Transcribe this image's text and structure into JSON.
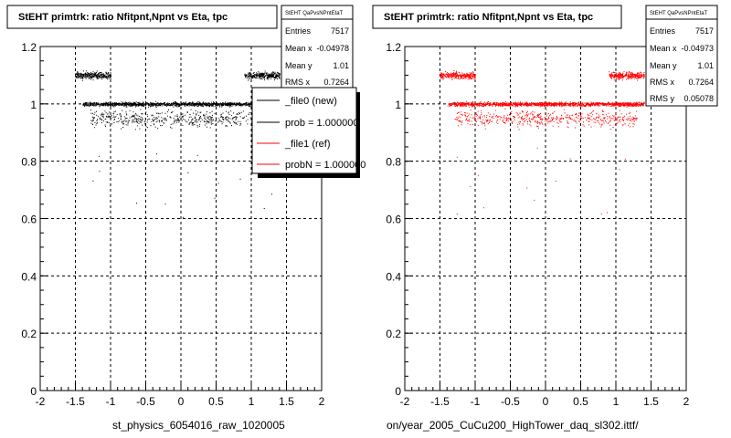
{
  "colors": {
    "new": "#000000",
    "ref": "#ff0000",
    "grid": "#000000"
  },
  "chart_data": [
    {
      "type": "scatter",
      "title": "StEHT primtrk: ratio Nfitpnt,Npnt vs Eta, tpc",
      "xlabel": "st_physics_6054016_raw_1020005",
      "xlim": [
        -2,
        2
      ],
      "ylim": [
        0,
        1.2
      ],
      "xticks": [
        "-2",
        "-1.5",
        "-1",
        "-0.5",
        "0",
        "0.5",
        "1",
        "1.5",
        "2"
      ],
      "yticks": [
        "0",
        "0.2",
        "0.4",
        "0.6",
        "0.8",
        "1",
        "1.2"
      ],
      "grid": true,
      "stats": {
        "name": "StEHT QaPvsNPntEtaT",
        "rows": [
          {
            "label": "Entries",
            "value": "7517"
          },
          {
            "label": "Mean x",
            "value": "-0.04978"
          },
          {
            "label": "Mean y",
            "value": "1.01"
          },
          {
            "label": "RMS x",
            "value": "0.7264"
          }
        ]
      },
      "legend": {
        "placement": "right",
        "entries": [
          {
            "label": "_file0 (new)",
            "color": "#000000"
          },
          {
            "label": "prob = 1.000000",
            "color": "#000000"
          },
          {
            "label": "_file1 (ref)",
            "color": "#ff0000"
          },
          {
            "label": "probN = 1.000000",
            "color": "#ff0000"
          }
        ]
      },
      "series": [
        {
          "color": "#000000",
          "bands": [
            {
              "y": 1.0,
              "x": [
                -1.4,
                1.4
              ],
              "weight": 0.55
            },
            {
              "y": 1.1,
              "x": [
                -1.5,
                -1.0
              ],
              "weight": 0.12
            },
            {
              "y": 1.1,
              "x": [
                0.9,
                1.4
              ],
              "weight": 0.12
            },
            {
              "y": 0.95,
              "x": [
                -1.3,
                1.3
              ],
              "weight": 0.21
            }
          ]
        }
      ]
    },
    {
      "type": "scatter",
      "title": "StEHT primtrk: ratio Nfitpnt,Npnt vs Eta, tpc",
      "xlabel": "on/year_2005_CuCu200_HighTower_daq_sl302.ittf/",
      "xlim": [
        -2,
        2
      ],
      "ylim": [
        0,
        1.2
      ],
      "xticks": [
        "-2",
        "-1.5",
        "-1",
        "-0.5",
        "0",
        "0.5",
        "1",
        "1.5",
        "2"
      ],
      "yticks": [
        "0",
        "0.2",
        "0.4",
        "0.6",
        "0.8",
        "1",
        "1.2"
      ],
      "grid": true,
      "stats": {
        "name": "StEHT QaPvsNPntEtaT",
        "rows": [
          {
            "label": "Entries",
            "value": "7517"
          },
          {
            "label": "Mean x",
            "value": "-0.04973"
          },
          {
            "label": "Mean y",
            "value": "1.01"
          },
          {
            "label": "RMS x",
            "value": "0.7264"
          },
          {
            "label": "RMS y",
            "value": "0.05078"
          }
        ]
      },
      "series": [
        {
          "color": "#ff0000",
          "bands": [
            {
              "y": 1.0,
              "x": [
                -1.4,
                1.4
              ],
              "weight": 0.55
            },
            {
              "y": 1.1,
              "x": [
                -1.5,
                -1.0
              ],
              "weight": 0.12
            },
            {
              "y": 1.1,
              "x": [
                0.9,
                1.4
              ],
              "weight": 0.12
            },
            {
              "y": 0.95,
              "x": [
                -1.3,
                1.3
              ],
              "weight": 0.21
            }
          ]
        }
      ]
    }
  ]
}
